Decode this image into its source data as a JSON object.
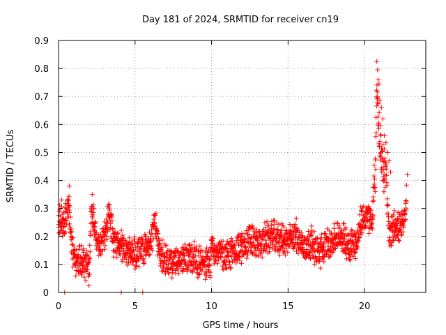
{
  "chart_data": {
    "type": "scatter",
    "title": "Day 181 of 2024, SRMTID for receiver cn19",
    "xlabel": "GPS time / hours",
    "ylabel": "SRMTID / TECUs",
    "xlim": [
      0,
      24
    ],
    "ylim": [
      0,
      0.9
    ],
    "xticks": [
      0,
      5,
      10,
      15,
      20
    ],
    "yticks": [
      0,
      0.1,
      0.2,
      0.3,
      0.4,
      0.5,
      0.6,
      0.7,
      0.8,
      0.9
    ],
    "xtick_labels": [
      "0",
      "5",
      "10",
      "15",
      "20"
    ],
    "ytick_labels": [
      "0",
      "0.1",
      "0.2",
      "0.3",
      "0.4",
      "0.5",
      "0.6",
      "0.7",
      "0.8",
      "0.9"
    ],
    "grid": true,
    "marker": "plus",
    "color": "#ff0000",
    "series": [
      {
        "name": "SRMTID",
        "trend": [
          [
            0.0,
            0.26
          ],
          [
            0.3,
            0.24
          ],
          [
            0.5,
            0.28
          ],
          [
            0.7,
            0.31
          ],
          [
            0.8,
            0.2
          ],
          [
            1.0,
            0.12
          ],
          [
            1.3,
            0.11
          ],
          [
            1.6,
            0.11
          ],
          [
            1.9,
            0.09
          ],
          [
            2.0,
            0.07
          ],
          [
            2.15,
            0.3
          ],
          [
            2.3,
            0.28
          ],
          [
            2.5,
            0.17
          ],
          [
            2.8,
            0.18
          ],
          [
            3.0,
            0.19
          ],
          [
            3.3,
            0.28
          ],
          [
            3.6,
            0.18
          ],
          [
            4.0,
            0.17
          ],
          [
            4.5,
            0.15
          ],
          [
            5.0,
            0.14
          ],
          [
            5.5,
            0.15
          ],
          [
            6.0,
            0.17
          ],
          [
            6.3,
            0.26
          ],
          [
            6.6,
            0.14
          ],
          [
            7.0,
            0.12
          ],
          [
            7.5,
            0.1
          ],
          [
            8.0,
            0.11
          ],
          [
            8.5,
            0.13
          ],
          [
            9.0,
            0.12
          ],
          [
            9.5,
            0.11
          ],
          [
            9.9,
            0.09
          ],
          [
            10.0,
            0.17
          ],
          [
            10.5,
            0.14
          ],
          [
            11.0,
            0.13
          ],
          [
            11.5,
            0.15
          ],
          [
            12.0,
            0.16
          ],
          [
            12.5,
            0.19
          ],
          [
            13.0,
            0.17
          ],
          [
            13.5,
            0.19
          ],
          [
            14.0,
            0.2
          ],
          [
            14.5,
            0.19
          ],
          [
            15.0,
            0.18
          ],
          [
            15.5,
            0.21
          ],
          [
            16.0,
            0.16
          ],
          [
            16.5,
            0.18
          ],
          [
            17.0,
            0.14
          ],
          [
            17.5,
            0.17
          ],
          [
            18.0,
            0.19
          ],
          [
            18.5,
            0.2
          ],
          [
            19.0,
            0.17
          ],
          [
            19.5,
            0.18
          ],
          [
            19.8,
            0.26
          ],
          [
            20.2,
            0.27
          ],
          [
            20.5,
            0.25
          ],
          [
            20.7,
            0.45
          ],
          [
            20.8,
            0.72
          ],
          [
            21.0,
            0.55
          ],
          [
            21.2,
            0.45
          ],
          [
            21.4,
            0.42
          ],
          [
            21.6,
            0.2
          ],
          [
            21.8,
            0.22
          ],
          [
            22.0,
            0.25
          ],
          [
            22.3,
            0.22
          ],
          [
            22.6,
            0.25
          ],
          [
            22.75,
            0.36
          ]
        ],
        "outliers": [
          [
            20.8,
            0.825
          ],
          [
            20.85,
            0.795
          ],
          [
            20.9,
            0.76
          ],
          [
            20.95,
            0.745
          ],
          [
            21.0,
            0.685
          ],
          [
            21.1,
            0.66
          ],
          [
            21.2,
            0.62
          ],
          [
            21.3,
            0.56
          ],
          [
            21.4,
            0.535
          ],
          [
            21.5,
            0.5
          ],
          [
            21.6,
            0.47
          ],
          [
            21.7,
            0.43
          ],
          [
            0.2,
            0.33
          ],
          [
            0.7,
            0.38
          ],
          [
            2.2,
            0.35
          ],
          [
            22.8,
            0.42
          ],
          [
            0.4,
            0.0
          ],
          [
            4.1,
            0.0
          ],
          [
            5.5,
            0.0
          ]
        ]
      }
    ]
  }
}
